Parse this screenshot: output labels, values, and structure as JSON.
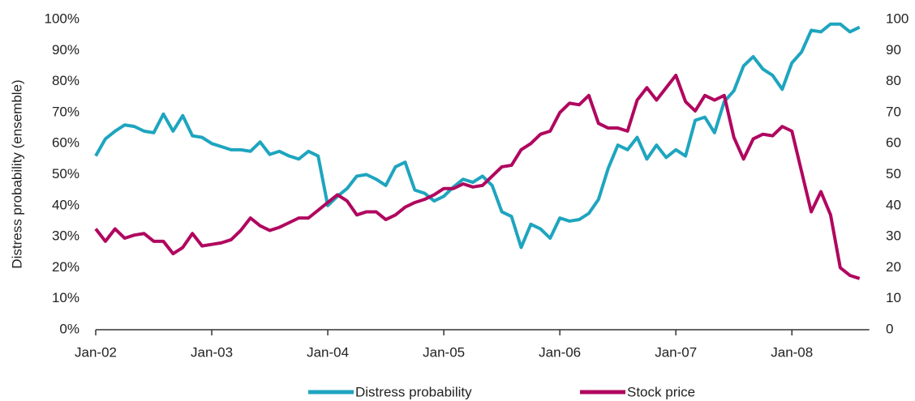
{
  "chart_data": {
    "type": "line",
    "y_label": "Distress probability (ensemble)",
    "categories": [
      "Jan-02",
      null,
      null,
      null,
      null,
      null,
      null,
      null,
      null,
      null,
      null,
      null,
      "Jan-03",
      null,
      null,
      null,
      null,
      null,
      null,
      null,
      null,
      null,
      null,
      null,
      "Jan-04",
      null,
      null,
      null,
      null,
      null,
      null,
      null,
      null,
      null,
      null,
      null,
      "Jan-05",
      null,
      null,
      null,
      null,
      null,
      null,
      null,
      null,
      null,
      null,
      null,
      "Jan-06",
      null,
      null,
      null,
      null,
      null,
      null,
      null,
      null,
      null,
      null,
      null,
      "Jan-07",
      null,
      null,
      null,
      null,
      null,
      null,
      null,
      null,
      null,
      null,
      null,
      "Jan-08",
      null,
      null,
      null,
      null,
      null,
      null,
      null
    ],
    "series": [
      {
        "name": "Distress probability",
        "color": "#1ea5bf",
        "axis": "y",
        "values": [
          56,
          61.5,
          64,
          66,
          65.5,
          64,
          63.5,
          69.5,
          64,
          69,
          62.5,
          62,
          60,
          59,
          58,
          58,
          57.5,
          60.5,
          56.5,
          57.5,
          56,
          55,
          57.5,
          56,
          40,
          43,
          45.5,
          49.5,
          50,
          48.5,
          46.5,
          52.5,
          54,
          45,
          44,
          41.5,
          43,
          46,
          48.5,
          47.5,
          49.5,
          46.5,
          38,
          36.5,
          26.5,
          34,
          32.5,
          29.5,
          36,
          35,
          35.5,
          37.5,
          42,
          52,
          59.5,
          58,
          62,
          55,
          59.5,
          55.5,
          58,
          56,
          67.5,
          68.5,
          63.5,
          73.5,
          77,
          85,
          88,
          84,
          82,
          77.5,
          86,
          89.5,
          96.5,
          96,
          98.5,
          98.5,
          96,
          97.5
        ]
      },
      {
        "name": "Stock price",
        "color": "#b0075f",
        "axis": "y2",
        "values": [
          32.5,
          28.5,
          32.5,
          29.5,
          30.5,
          31,
          28.5,
          28.5,
          24.5,
          26.5,
          31,
          27,
          27.5,
          28,
          29,
          32,
          36,
          33.5,
          32,
          33,
          34.5,
          36,
          36,
          38.5,
          41,
          43.5,
          41.5,
          37,
          38,
          38,
          35.5,
          37,
          39.5,
          41,
          42,
          43.5,
          45.5,
          45.5,
          47,
          46,
          46.5,
          49.5,
          52.5,
          53,
          58,
          60,
          63,
          64,
          70,
          73,
          72.5,
          75.5,
          66.5,
          65,
          65,
          64,
          74,
          78,
          74,
          78,
          82,
          73.5,
          70.5,
          75.5,
          74,
          75.5,
          62,
          55,
          61.5,
          63,
          62.5,
          65.5,
          64,
          51,
          38,
          44.5,
          37,
          20,
          17.5,
          16.5
        ]
      }
    ],
    "ylim": [
      0,
      100
    ],
    "yticks": [
      {
        "value": 0,
        "label": "0%"
      },
      {
        "value": 10,
        "label": "10%"
      },
      {
        "value": 20,
        "label": "20%"
      },
      {
        "value": 30,
        "label": "30%"
      },
      {
        "value": 40,
        "label": "40%"
      },
      {
        "value": 50,
        "label": "50%"
      },
      {
        "value": 60,
        "label": "60%"
      },
      {
        "value": 70,
        "label": "70%"
      },
      {
        "value": 80,
        "label": "80%"
      },
      {
        "value": 90,
        "label": "90%"
      },
      {
        "value": 100,
        "label": "100%"
      }
    ],
    "y2lim": [
      0,
      100
    ],
    "y2ticks": [
      0,
      10,
      20,
      30,
      40,
      50,
      60,
      70,
      80,
      90,
      100
    ],
    "legend": "bottom"
  }
}
